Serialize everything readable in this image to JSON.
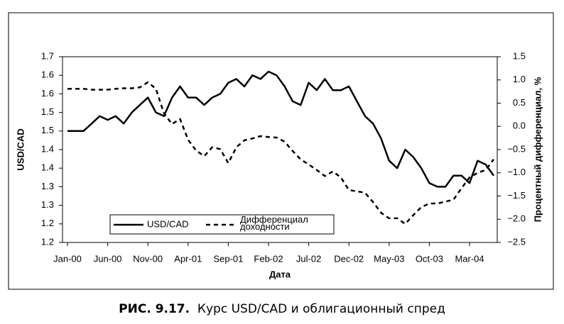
{
  "chart_data": {
    "type": "line",
    "x_label": "Дата",
    "y_label": "USD/CAD",
    "y2_label": "Процентный дифференциал, %",
    "caption_label": "РИС. 9.17.",
    "caption_text": "Курс USD/CAD и облигационный спред",
    "categories": [
      "Jan-00",
      null,
      null,
      null,
      null,
      "Jun-00",
      null,
      null,
      null,
      null,
      "Nov-00",
      null,
      null,
      null,
      null,
      "Apr-01",
      null,
      null,
      null,
      null,
      "Sep-01",
      null,
      null,
      null,
      null,
      "Feb-02",
      null,
      null,
      null,
      null,
      "Jul-02",
      null,
      null,
      null,
      null,
      "Dec-02",
      null,
      null,
      null,
      null,
      "May-03",
      null,
      null,
      null,
      null,
      "Oct-03",
      null,
      null,
      null,
      null,
      "Mar-04",
      null,
      null,
      null
    ],
    "series": [
      {
        "name": "USD/CAD",
        "color": "#000000",
        "dash": false,
        "axis": "y",
        "values": [
          1.5,
          1.5,
          1.5,
          1.52,
          1.54,
          1.53,
          1.54,
          1.52,
          1.55,
          1.57,
          1.59,
          1.55,
          1.54,
          1.59,
          1.62,
          1.59,
          1.59,
          1.57,
          1.59,
          1.6,
          1.63,
          1.64,
          1.62,
          1.65,
          1.64,
          1.66,
          1.65,
          1.62,
          1.58,
          1.57,
          1.63,
          1.61,
          1.64,
          1.61,
          1.61,
          1.62,
          1.58,
          1.54,
          1.52,
          1.48,
          1.42,
          1.4,
          1.45,
          1.43,
          1.4,
          1.36,
          1.35,
          1.35,
          1.38,
          1.38,
          1.36,
          1.42,
          1.41,
          1.38
        ]
      },
      {
        "name": "Дифференциал доходности",
        "color": "#000000",
        "dash": true,
        "axis": "y2",
        "values": [
          0.81,
          0.81,
          0.81,
          0.79,
          0.79,
          0.79,
          0.81,
          0.82,
          0.82,
          0.84,
          0.95,
          0.81,
          0.28,
          0.05,
          0.16,
          -0.29,
          -0.52,
          -0.64,
          -0.45,
          -0.49,
          -0.79,
          -0.45,
          -0.3,
          -0.26,
          -0.21,
          -0.23,
          -0.24,
          -0.33,
          -0.53,
          -0.71,
          -0.82,
          -0.94,
          -1.07,
          -0.97,
          -1.1,
          -1.37,
          -1.4,
          -1.43,
          -1.63,
          -1.86,
          -1.98,
          -1.98,
          -2.1,
          -1.91,
          -1.74,
          -1.66,
          -1.66,
          -1.62,
          -1.58,
          -1.33,
          -1.1,
          -1.0,
          -0.94,
          -0.71
        ]
      }
    ],
    "ylim": [
      1.2,
      1.7
    ],
    "yticks": [
      {
        "value": 1.2,
        "label": "1.2"
      },
      {
        "value": 1.25,
        "label": "1.2"
      },
      {
        "value": 1.3,
        "label": "1.3"
      },
      {
        "value": 1.35,
        "label": "1.3"
      },
      {
        "value": 1.4,
        "label": "1.4"
      },
      {
        "value": 1.45,
        "label": "1.4"
      },
      {
        "value": 1.5,
        "label": "1.5"
      },
      {
        "value": 1.55,
        "label": "1.5"
      },
      {
        "value": 1.6,
        "label": "1.6"
      },
      {
        "value": 1.65,
        "label": "1.6"
      },
      {
        "value": 1.7,
        "label": "1.7"
      }
    ],
    "y2lim": [
      -2.5,
      1.5
    ],
    "y2ticks": [
      {
        "value": -2.5,
        "label": "−2.5"
      },
      {
        "value": -2,
        "label": "−2.0"
      },
      {
        "value": -1.5,
        "label": "−1.5"
      },
      {
        "value": -1,
        "label": "−1.0"
      },
      {
        "value": -0.5,
        "label": "−0.5"
      },
      {
        "value": 0,
        "label": "0.0"
      },
      0.5,
      {
        "value": 1,
        "label": "1.0"
      },
      1.5
    ],
    "grid": false
  }
}
